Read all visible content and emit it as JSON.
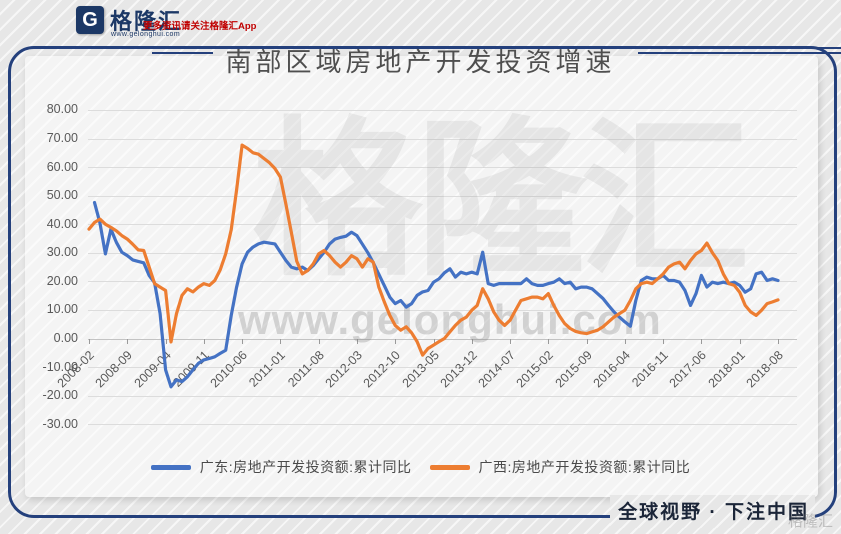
{
  "header": {
    "logo_mark": "G",
    "brand_name": "格隆汇",
    "brand_site": "www.gelonghui.com",
    "promo_text": "更多资讯请关注格隆汇App"
  },
  "watermarks": {
    "brand_large": "格隆汇",
    "site_url": "www.gelonghui.com",
    "corner_brand": "格隆汇"
  },
  "footer": {
    "slogan": "全球视野 · 下注中国"
  },
  "chart_data": {
    "type": "line",
    "title": "南部区域房地产开发投资增速",
    "x_start": "2008-02",
    "x_end": "2018-08",
    "x_frequency": "monthly",
    "x_tick_labels": [
      "2008-02",
      "2008-09",
      "2009-04",
      "2009-11",
      "2010-06",
      "2011-01",
      "2011-08",
      "2012-03",
      "2012-10",
      "2013-05",
      "2013-12",
      "2014-07",
      "2015-02",
      "2015-09",
      "2016-04",
      "2016-11",
      "2017-06",
      "2018-01",
      "2018-08"
    ],
    "y_tick_labels": [
      "80.00",
      "70.00",
      "60.00",
      "50.00",
      "40.00",
      "30.00",
      "20.00",
      "10.00",
      "0.00",
      "-10.00",
      "-20.00",
      "-30.00"
    ],
    "y_tick_values": [
      80,
      70,
      60,
      50,
      40,
      30,
      20,
      10,
      0,
      -10,
      -20,
      -30
    ],
    "ylim": [
      -30,
      80
    ],
    "grid": "horizontal",
    "legend_position": "bottom",
    "series": [
      {
        "name": "广东:房地产开发投资额:累计同比",
        "color": "#4472C4",
        "values": [
          null,
          47.6,
          40.5,
          29.6,
          38.3,
          33.7,
          30.2,
          29.0,
          27.5,
          27.0,
          26.5,
          22.0,
          19.5,
          8.7,
          -11.0,
          -16.9,
          -14.5,
          -15.1,
          -13.4,
          -11.0,
          -8.7,
          -7.5,
          -7.0,
          -6.4,
          -5.2,
          -4.1,
          8.0,
          18.0,
          26.1,
          30.2,
          32.0,
          33.1,
          33.7,
          33.4,
          33.1,
          30.2,
          27.3,
          25.0,
          24.4,
          25.0,
          23.8,
          25.5,
          27.9,
          30.2,
          33.1,
          34.8,
          35.4,
          35.8,
          37.2,
          36.0,
          33.0,
          30.0,
          26.5,
          22.5,
          18.5,
          14.5,
          12.2,
          13.3,
          11.0,
          12.2,
          15.1,
          16.3,
          16.8,
          19.7,
          20.9,
          23.0,
          24.4,
          21.5,
          23.2,
          22.6,
          23.2,
          22.6,
          30.2,
          19.2,
          18.6,
          19.2,
          19.2,
          19.2,
          19.2,
          19.2,
          20.9,
          19.2,
          18.6,
          18.6,
          19.2,
          19.7,
          20.9,
          19.2,
          19.7,
          17.4,
          18.0,
          18.0,
          17.4,
          15.7,
          14.0,
          11.6,
          9.3,
          7.5,
          5.8,
          4.3,
          13.3,
          20.3,
          21.5,
          20.9,
          20.9,
          22.1,
          20.3,
          20.3,
          19.7,
          16.8,
          11.6,
          15.7,
          22.1,
          18.0,
          19.7,
          19.2,
          19.7,
          19.2,
          19.7,
          18.6,
          16.2,
          17.4,
          22.6,
          23.2,
          20.3,
          20.9,
          20.3
        ]
      },
      {
        "name": "广西:房地产开发投资额:累计同比",
        "color": "#ED7D31",
        "values": [
          38.3,
          40.6,
          41.8,
          40.0,
          38.9,
          37.7,
          36.0,
          34.8,
          33.0,
          31.0,
          30.8,
          25.0,
          19.2,
          18.0,
          16.8,
          -1.2,
          8.7,
          15.1,
          17.4,
          16.3,
          18.0,
          19.2,
          18.6,
          20.3,
          24.0,
          29.6,
          38.0,
          52.0,
          67.7,
          66.5,
          65.0,
          64.5,
          63.0,
          61.5,
          59.5,
          56.5,
          47.0,
          37.2,
          27.0,
          22.6,
          23.8,
          26.1,
          29.6,
          30.8,
          29.0,
          26.7,
          25.0,
          26.7,
          29.0,
          27.9,
          25.0,
          27.9,
          26.7,
          18.0,
          12.8,
          8.1,
          4.6,
          2.9,
          4.1,
          2.0,
          -1.1,
          -5.8,
          -3.5,
          -2.3,
          -1.1,
          0.0,
          2.3,
          4.6,
          6.4,
          7.5,
          9.9,
          11.6,
          17.4,
          13.9,
          9.3,
          6.4,
          4.6,
          6.4,
          9.9,
          13.3,
          13.9,
          14.5,
          14.5,
          13.9,
          15.7,
          11.6,
          8.0,
          5.2,
          3.5,
          2.5,
          2.0,
          1.7,
          2.3,
          2.9,
          4.1,
          5.8,
          7.5,
          8.7,
          9.9,
          13.3,
          17.4,
          19.2,
          19.7,
          19.2,
          20.9,
          22.6,
          25.0,
          26.1,
          26.7,
          24.4,
          27.3,
          29.6,
          30.8,
          33.4,
          30.0,
          27.3,
          22.6,
          19.2,
          18.6,
          16.2,
          11.6,
          9.3,
          8.1,
          9.9,
          12.2,
          12.8,
          13.5
        ]
      }
    ]
  }
}
